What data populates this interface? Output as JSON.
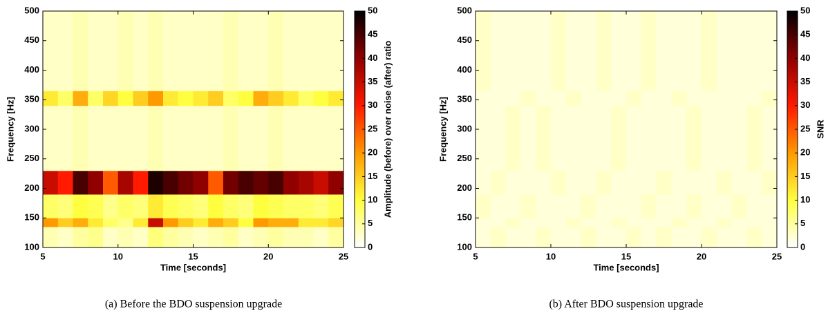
{
  "chart_data": [
    {
      "type": "heatmap",
      "caption": "(a) Before the BDO suspension upgrade",
      "xlabel": "Time [seconds]",
      "ylabel": "Frequency [Hz]",
      "xlim": [
        5,
        25
      ],
      "xticks": [
        5,
        10,
        15,
        20,
        25
      ],
      "ylim": [
        100,
        500
      ],
      "yticks": [
        100,
        150,
        200,
        250,
        300,
        350,
        400,
        450,
        500
      ],
      "xbins": [
        5,
        6,
        7,
        8,
        9,
        10,
        11,
        12,
        13,
        14,
        15,
        16,
        17,
        18,
        19,
        20,
        21,
        22,
        23,
        24,
        25
      ],
      "ybins": [
        100,
        135,
        150,
        190,
        230,
        340,
        365,
        500
      ],
      "values": [
        [
          4,
          3,
          5,
          6,
          3,
          4,
          3,
          7,
          5,
          4,
          3,
          4,
          5,
          3,
          4,
          5,
          4,
          4,
          3,
          5
        ],
        [
          20,
          15,
          18,
          12,
          8,
          6,
          12,
          35,
          20,
          15,
          12,
          18,
          15,
          10,
          20,
          18,
          18,
          12,
          12,
          14
        ],
        [
          8,
          7,
          10,
          9,
          6,
          8,
          7,
          12,
          9,
          8,
          7,
          10,
          8,
          7,
          10,
          9,
          8,
          8,
          7,
          9
        ],
        [
          35,
          30,
          45,
          40,
          25,
          38,
          30,
          48,
          45,
          42,
          40,
          25,
          42,
          45,
          43,
          45,
          40,
          38,
          35,
          40
        ],
        [
          3,
          3,
          4,
          3,
          3,
          3,
          3,
          4,
          3,
          3,
          3,
          3,
          4,
          3,
          3,
          4,
          3,
          3,
          3,
          3
        ],
        [
          12,
          8,
          18,
          8,
          14,
          10,
          15,
          20,
          12,
          10,
          12,
          15,
          8,
          10,
          18,
          15,
          12,
          8,
          10,
          12
        ],
        [
          3,
          3,
          4,
          3,
          3,
          4,
          3,
          4,
          3,
          3,
          3,
          3,
          4,
          3,
          3,
          4,
          3,
          3,
          3,
          3
        ]
      ],
      "colorbar": {
        "label": "Amplitude (before) over noise (after) ratio",
        "lim": [
          0,
          50
        ],
        "ticks": [
          0,
          5,
          10,
          15,
          20,
          25,
          30,
          35,
          40,
          45,
          50
        ]
      },
      "colormap": [
        "#ffffff",
        "#ffff40",
        "#ff9900",
        "#ff1a00",
        "#900000",
        "#000000"
      ]
    },
    {
      "type": "heatmap",
      "caption": "(b) After BDO suspension upgrade",
      "xlabel": "Time [seconds]",
      "ylabel": "Frequency [Hz]",
      "xlim": [
        5,
        25
      ],
      "xticks": [
        5,
        10,
        15,
        20,
        25
      ],
      "ylim": [
        100,
        500
      ],
      "yticks": [
        100,
        150,
        200,
        250,
        300,
        350,
        400,
        450,
        500
      ],
      "xbins": [
        5,
        6,
        7,
        8,
        9,
        10,
        11,
        12,
        13,
        14,
        15,
        16,
        17,
        18,
        19,
        20,
        21,
        22,
        23,
        24,
        25
      ],
      "ybins": [
        100,
        135,
        150,
        190,
        230,
        340,
        365,
        500
      ],
      "values": [
        [
          2,
          3,
          2,
          2,
          3,
          2,
          2,
          3,
          2,
          2,
          3,
          2,
          3,
          2,
          2,
          3,
          2,
          2,
          3,
          2
        ],
        [
          2,
          2,
          3,
          2,
          2,
          2,
          3,
          2,
          2,
          3,
          2,
          2,
          2,
          3,
          2,
          2,
          3,
          2,
          2,
          2
        ],
        [
          3,
          2,
          2,
          3,
          2,
          2,
          2,
          3,
          2,
          2,
          2,
          3,
          2,
          2,
          3,
          2,
          2,
          3,
          2,
          2
        ],
        [
          2,
          3,
          2,
          2,
          2,
          3,
          2,
          2,
          3,
          2,
          2,
          2,
          3,
          2,
          2,
          2,
          3,
          2,
          2,
          3
        ],
        [
          2,
          2,
          3,
          2,
          3,
          2,
          2,
          2,
          2,
          3,
          2,
          2,
          2,
          2,
          3,
          2,
          2,
          2,
          3,
          2
        ],
        [
          2,
          2,
          2,
          3,
          2,
          2,
          3,
          2,
          2,
          2,
          3,
          2,
          2,
          3,
          2,
          2,
          2,
          2,
          2,
          3
        ],
        [
          3,
          2,
          2,
          2,
          2,
          3,
          2,
          2,
          3,
          2,
          2,
          3,
          2,
          2,
          2,
          3,
          2,
          2,
          2,
          2
        ]
      ],
      "colorbar": {
        "label": "SNR",
        "lim": [
          0,
          50
        ],
        "ticks": [
          0,
          5,
          10,
          15,
          20,
          25,
          30,
          35,
          40,
          45,
          50
        ]
      },
      "colormap": [
        "#ffffff",
        "#ffff40",
        "#ff9900",
        "#ff1a00",
        "#900000",
        "#000000"
      ]
    }
  ]
}
